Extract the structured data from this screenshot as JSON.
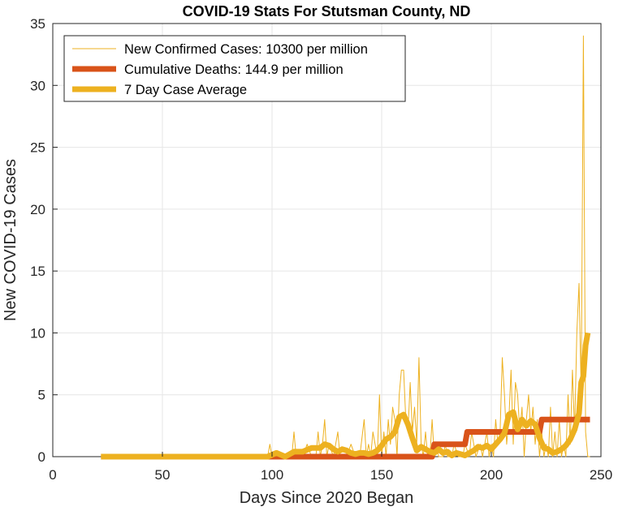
{
  "chart_data": {
    "type": "line",
    "title": "COVID-19 Stats For Stutsman County, ND",
    "xlabel": "Days Since 2020 Began",
    "ylabel": "New COVID-19 Cases",
    "xlim": [
      0,
      250
    ],
    "ylim": [
      0,
      35
    ],
    "xticks": [
      "0",
      "50",
      "100",
      "150",
      "200",
      "250"
    ],
    "yticks": [
      "0",
      "5",
      "10",
      "15",
      "20",
      "25",
      "30",
      "35"
    ],
    "grid": true,
    "legend_position": "top-left",
    "series": [
      {
        "name": "New Confirmed Cases: 10300 per million",
        "color": "#EDB120",
        "style": "thin",
        "x": [
          22,
          60,
          98,
          99,
          100,
          101,
          104,
          106,
          109,
          110,
          111,
          112,
          114,
          116,
          118,
          119,
          120,
          121,
          122,
          123,
          124,
          125,
          126,
          128,
          130,
          131,
          133,
          134,
          136,
          138,
          140,
          142,
          143,
          144,
          145,
          146,
          148,
          149,
          150,
          151,
          152,
          153,
          154,
          155,
          156,
          157,
          158,
          159,
          160,
          161,
          162,
          163,
          164,
          165,
          166,
          167,
          168,
          169,
          170,
          171,
          172,
          173,
          174,
          175,
          176,
          177,
          178,
          179,
          180,
          182,
          183,
          185,
          187,
          188,
          190,
          191,
          193,
          195,
          196,
          198,
          199,
          200,
          201,
          202,
          203,
          204,
          205,
          206,
          207,
          208,
          209,
          210,
          211,
          212,
          213,
          214,
          215,
          216,
          217,
          218,
          219,
          220,
          221,
          222,
          223,
          224,
          225,
          226,
          227,
          228,
          229,
          230,
          231,
          232,
          233,
          234,
          235,
          236,
          237,
          238,
          239,
          240,
          241,
          242,
          243,
          244,
          245
        ],
        "y": [
          0,
          0,
          0,
          1,
          0,
          0,
          0,
          0,
          0,
          2,
          0,
          0,
          0,
          1,
          0,
          0,
          0,
          2,
          0,
          1,
          3,
          0,
          1,
          0,
          2,
          0,
          0,
          0,
          1,
          0,
          0,
          3,
          0,
          1,
          0,
          2,
          0,
          5,
          0,
          2,
          0,
          3,
          1,
          4,
          3,
          0,
          5,
          7,
          7,
          3,
          2,
          6,
          2,
          4,
          1,
          8,
          1,
          0,
          2,
          0,
          0,
          3,
          0,
          1,
          0,
          0,
          0,
          1,
          0,
          0,
          1,
          0,
          0,
          1,
          0,
          2,
          0,
          1,
          0,
          2,
          0,
          1,
          0,
          3,
          1,
          2,
          8,
          5,
          1,
          3,
          7,
          1,
          6,
          5,
          2,
          4,
          0,
          3,
          5,
          2,
          4,
          1,
          3,
          0,
          2,
          0,
          1,
          0,
          4,
          0,
          2,
          0,
          3,
          0,
          1,
          0,
          5,
          1,
          7,
          2,
          10,
          14,
          5,
          34,
          2,
          0,
          0
        ],
        "values_note_units": "cases"
      },
      {
        "name": "Cumulative Deaths: 144.9 per million",
        "color": "#D95319",
        "style": "thick",
        "x": [
          22,
          173,
          174,
          188,
          189,
          222,
          223,
          245
        ],
        "y": [
          0,
          0,
          1,
          1,
          2,
          2,
          3,
          3
        ]
      },
      {
        "name": "7 Day Case Average",
        "color": "#EDB120",
        "style": "thick",
        "x": [
          22,
          98,
          102,
          106,
          110,
          114,
          118,
          122,
          124,
          126,
          128,
          130,
          132,
          134,
          136,
          138,
          140,
          142,
          144,
          146,
          148,
          150,
          152,
          154,
          156,
          158,
          160,
          162,
          164,
          166,
          168,
          170,
          172,
          174,
          176,
          178,
          180,
          182,
          184,
          186,
          188,
          190,
          192,
          194,
          196,
          198,
          200,
          202,
          204,
          206,
          208,
          210,
          212,
          214,
          216,
          218,
          220,
          222,
          224,
          226,
          228,
          230,
          232,
          234,
          236,
          238,
          240,
          241,
          242,
          243,
          244
        ],
        "y": [
          0,
          0,
          0.3,
          0,
          0.4,
          0.4,
          0.7,
          0.7,
          1.0,
          0.9,
          0.6,
          0.4,
          0.6,
          0.5,
          0.3,
          0.2,
          0.3,
          0.3,
          0.2,
          0.3,
          0.5,
          0.9,
          1.4,
          1.6,
          2.0,
          3.2,
          3.4,
          2.6,
          1.5,
          0.5,
          0.8,
          0.6,
          0.4,
          0.3,
          0.6,
          0.3,
          0.4,
          0.1,
          0.3,
          0.2,
          0.1,
          0.3,
          0.5,
          0.8,
          0.7,
          0.9,
          0.6,
          1.0,
          1.4,
          1.9,
          3.4,
          3.6,
          2.2,
          3.0,
          2.5,
          2.9,
          2.6,
          1.5,
          0.7,
          0.6,
          0.3,
          0.4,
          0.6,
          0.9,
          1.4,
          2.2,
          3.5,
          6.0,
          6.5,
          9.0,
          10.0
        ]
      }
    ]
  }
}
